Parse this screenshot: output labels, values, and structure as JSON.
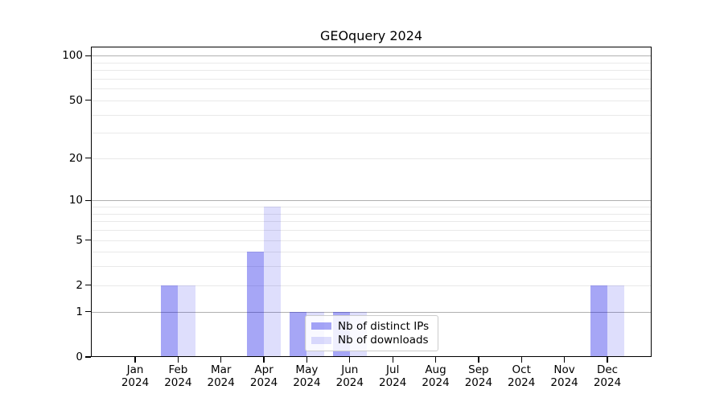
{
  "title": "GEOquery 2024",
  "chart_data": {
    "type": "bar",
    "title": "GEOquery 2024",
    "year": "2024",
    "categories": [
      "Jan",
      "Feb",
      "Mar",
      "Apr",
      "May",
      "Jun",
      "Jul",
      "Aug",
      "Sep",
      "Oct",
      "Nov",
      "Dec"
    ],
    "series": [
      {
        "name": "Nb of distinct IPs",
        "color": "rgba(0,0,230,0.35)",
        "values": [
          0,
          2,
          0,
          4,
          1,
          1,
          0,
          0,
          0,
          0,
          0,
          2
        ]
      },
      {
        "name": "Nb of downloads",
        "color": "rgba(0,0,230,0.13)",
        "values": [
          0,
          2,
          0,
          9,
          1,
          1,
          0,
          0,
          0,
          0,
          0,
          2
        ]
      }
    ],
    "xlabel": "",
    "ylabel": "",
    "y_scale": "log1p",
    "ylim": [
      0,
      115
    ],
    "y_ticks": [
      0,
      1,
      2,
      5,
      10,
      20,
      50,
      100
    ],
    "major_gridlines": [
      1,
      10,
      100
    ],
    "minor_gridlines": [
      2,
      3,
      4,
      5,
      6,
      7,
      8,
      9,
      20,
      30,
      40,
      50,
      60,
      70,
      80,
      90
    ],
    "grid": true,
    "legend_position": "lower center"
  },
  "colors": {
    "background": "#ffffff",
    "axis": "#000000",
    "major_grid": "#b0b0b0",
    "minor_grid": "#e9e9e9",
    "legend_border": "#cccccc",
    "legend_bg": "rgba(255,255,255,0.82)"
  }
}
